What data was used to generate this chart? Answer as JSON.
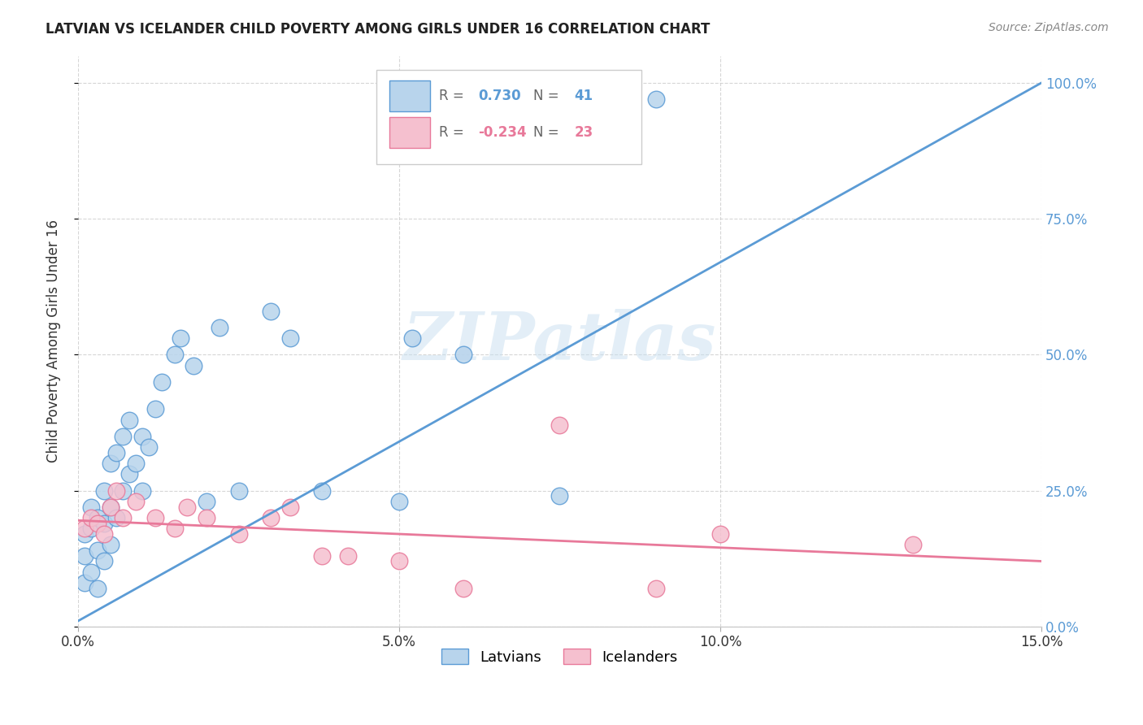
{
  "title": "LATVIAN VS ICELANDER CHILD POVERTY AMONG GIRLS UNDER 16 CORRELATION CHART",
  "source": "Source: ZipAtlas.com",
  "ylabel": "Child Poverty Among Girls Under 16",
  "xlim": [
    0.0,
    0.15
  ],
  "ylim": [
    0.0,
    1.05
  ],
  "yticks": [
    0.0,
    0.25,
    0.5,
    0.75,
    1.0
  ],
  "ytick_labels": [
    "0.0%",
    "25.0%",
    "50.0%",
    "75.0%",
    "100.0%"
  ],
  "xticks": [
    0.0,
    0.05,
    0.1,
    0.15
  ],
  "xtick_labels": [
    "0.0%",
    "5.0%",
    "10.0%",
    "15.0%"
  ],
  "latvian_color": "#b8d4ec",
  "icelander_color": "#f5c0cf",
  "latvian_line_color": "#5b9bd5",
  "icelander_line_color": "#e8799a",
  "latvian_R": 0.73,
  "latvian_N": 41,
  "icelander_R": -0.234,
  "icelander_N": 23,
  "watermark": "ZIPatlas",
  "latvian_line_x": [
    0.0,
    0.15
  ],
  "latvian_line_y": [
    0.01,
    1.0
  ],
  "icelander_line_x": [
    0.0,
    0.15
  ],
  "icelander_line_y": [
    0.195,
    0.12
  ],
  "latvian_scatter_x": [
    0.001,
    0.001,
    0.001,
    0.002,
    0.002,
    0.002,
    0.003,
    0.003,
    0.003,
    0.004,
    0.004,
    0.004,
    0.005,
    0.005,
    0.005,
    0.006,
    0.006,
    0.007,
    0.007,
    0.008,
    0.008,
    0.009,
    0.01,
    0.01,
    0.011,
    0.012,
    0.013,
    0.015,
    0.016,
    0.018,
    0.02,
    0.022,
    0.025,
    0.03,
    0.033,
    0.038,
    0.05,
    0.052,
    0.06,
    0.075,
    0.09
  ],
  "latvian_scatter_y": [
    0.08,
    0.13,
    0.17,
    0.1,
    0.18,
    0.22,
    0.07,
    0.14,
    0.2,
    0.12,
    0.19,
    0.25,
    0.15,
    0.22,
    0.3,
    0.2,
    0.32,
    0.25,
    0.35,
    0.28,
    0.38,
    0.3,
    0.25,
    0.35,
    0.33,
    0.4,
    0.45,
    0.5,
    0.53,
    0.48,
    0.23,
    0.55,
    0.25,
    0.58,
    0.53,
    0.25,
    0.23,
    0.53,
    0.5,
    0.24,
    0.97
  ],
  "icelander_scatter_x": [
    0.001,
    0.002,
    0.003,
    0.004,
    0.005,
    0.006,
    0.007,
    0.009,
    0.012,
    0.015,
    0.017,
    0.02,
    0.025,
    0.03,
    0.033,
    0.038,
    0.042,
    0.05,
    0.06,
    0.075,
    0.09,
    0.1,
    0.13
  ],
  "icelander_scatter_y": [
    0.18,
    0.2,
    0.19,
    0.17,
    0.22,
    0.25,
    0.2,
    0.23,
    0.2,
    0.18,
    0.22,
    0.2,
    0.17,
    0.2,
    0.22,
    0.13,
    0.13,
    0.12,
    0.07,
    0.37,
    0.07,
    0.17,
    0.15
  ]
}
